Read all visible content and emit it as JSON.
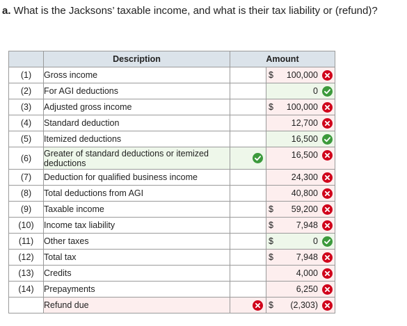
{
  "question": {
    "prefix": "a.",
    "text": " What is the Jacksons’ taxable income, and what is their tax liability or (refund)?"
  },
  "table": {
    "headers": {
      "description": "Description",
      "amount": "Amount"
    },
    "rows": [
      {
        "num": "(1)",
        "desc": "Gross income",
        "dollar": "$",
        "amount": "100,000",
        "status": "incorrect"
      },
      {
        "num": "(2)",
        "desc": "For AGI deductions",
        "dollar": "",
        "amount": "0",
        "status": "correct"
      },
      {
        "num": "(3)",
        "desc": "Adjusted gross income",
        "dollar": "$",
        "amount": "100,000",
        "status": "incorrect"
      },
      {
        "num": "(4)",
        "desc": "Standard deduction",
        "dollar": "",
        "amount": "12,700",
        "status": "incorrect"
      },
      {
        "num": "(5)",
        "desc": "Itemized deductions",
        "dollar": "",
        "amount": "16,500",
        "status": "correct"
      },
      {
        "num": "(6)",
        "desc": "Greater of standard deductions or itemized deductions",
        "dollar": "",
        "amount": "16,500",
        "status": "incorrect",
        "mid_status": "correct"
      },
      {
        "num": "(7)",
        "desc": "Deduction for qualified business income",
        "dollar": "",
        "amount": "24,300",
        "status": "incorrect"
      },
      {
        "num": "(8)",
        "desc": "Total deductions from AGI",
        "dollar": "",
        "amount": "40,800",
        "status": "incorrect"
      },
      {
        "num": "(9)",
        "desc": "Taxable income",
        "dollar": "$",
        "amount": "59,200",
        "status": "incorrect"
      },
      {
        "num": "(10)",
        "desc": "Income tax liability",
        "dollar": "$",
        "amount": "7,948",
        "status": "incorrect"
      },
      {
        "num": "(11)",
        "desc": "Other taxes",
        "dollar": "$",
        "amount": "0",
        "status": "correct"
      },
      {
        "num": "(12)",
        "desc": "Total tax",
        "dollar": "$",
        "amount": "7,948",
        "status": "incorrect"
      },
      {
        "num": "(13)",
        "desc": "Credits",
        "dollar": "",
        "amount": "4,000",
        "status": "incorrect"
      },
      {
        "num": "(14)",
        "desc": "Prepayments",
        "dollar": "",
        "amount": "6,250",
        "status": "incorrect"
      },
      {
        "num": "",
        "desc": "Refund due",
        "dollar": "$",
        "amount": "(2,303)",
        "status": "incorrect",
        "mid_status": "incorrect"
      }
    ]
  },
  "colors": {
    "correct": "#3c9a3c",
    "incorrect": "#d0021b",
    "header_bg": "#dbe3ea",
    "incorrect_bg": "#fdeeee",
    "correct_bg": "#eef7ea"
  },
  "icons": {
    "correct": "check-circle-icon",
    "incorrect": "x-circle-icon"
  }
}
